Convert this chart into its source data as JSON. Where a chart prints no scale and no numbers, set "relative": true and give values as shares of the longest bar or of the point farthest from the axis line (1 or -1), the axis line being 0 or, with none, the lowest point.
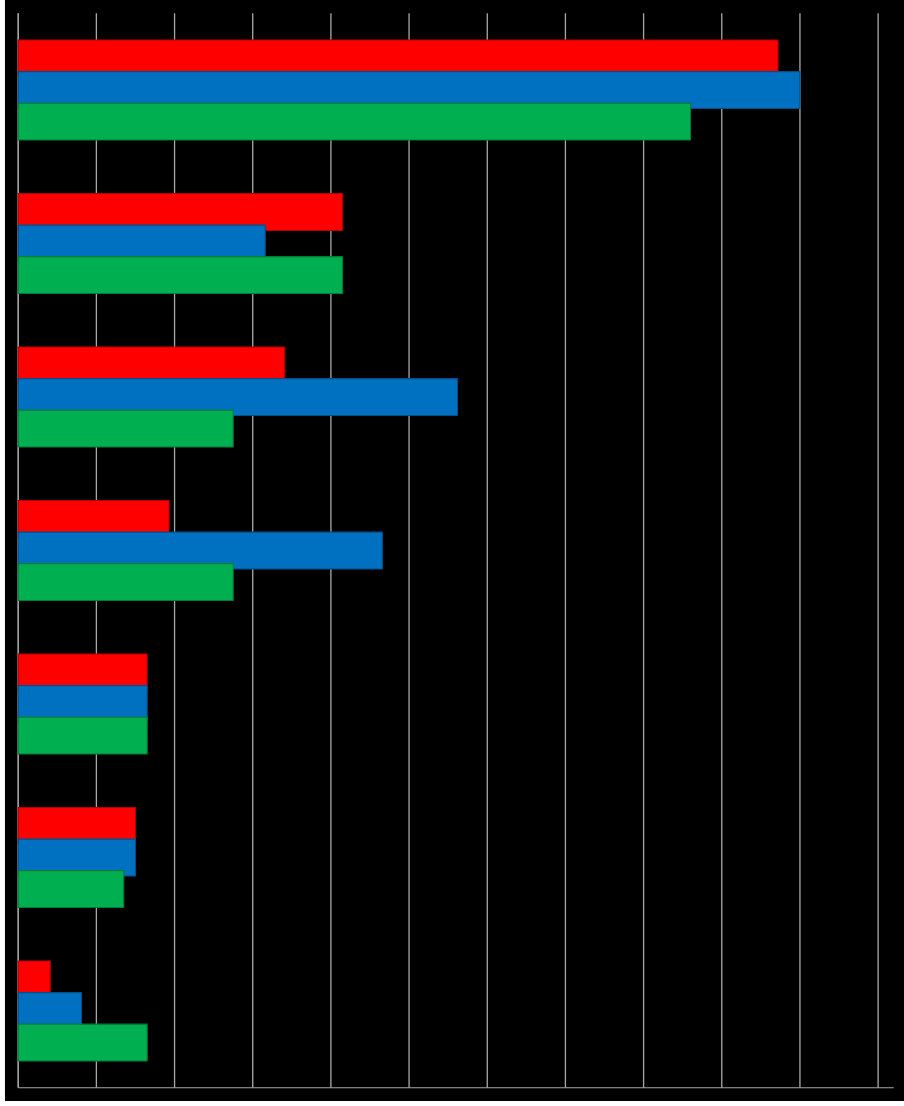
{
  "chart_data": {
    "type": "bar",
    "orientation": "horizontal",
    "relative": true,
    "grid": "x",
    "categories": [
      null,
      null,
      null,
      null,
      null,
      null,
      null
    ],
    "series": [
      {
        "color": "#ff0000",
        "values": [
          0.972,
          0.415,
          0.341,
          0.193,
          0.165,
          0.15,
          0.041
        ]
      },
      {
        "color": "#0070c0",
        "values": [
          1,
          0.316,
          0.562,
          0.466,
          0.165,
          0.15,
          0.081
        ]
      },
      {
        "color": "#00b050",
        "values": [
          0.86,
          0.415,
          0.275,
          0.275,
          0.165,
          0.135,
          0.165
        ]
      }
    ]
  }
}
